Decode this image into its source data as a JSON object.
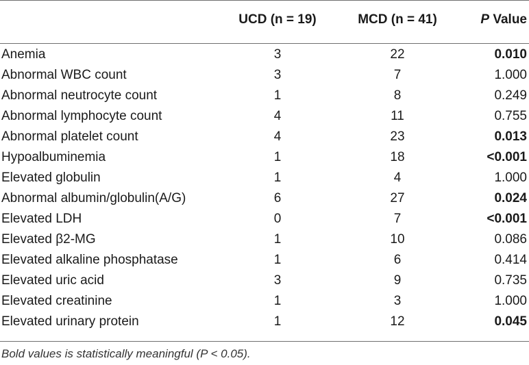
{
  "table": {
    "headers": {
      "label": "",
      "ucd": "UCD (n = 19)",
      "mcd": "MCD (n = 41)",
      "p_italic": "P",
      "p_rest": " Value"
    },
    "rows": [
      {
        "label": "Anemia",
        "ucd": "3",
        "mcd": "22",
        "p": "0.010",
        "bold": true
      },
      {
        "label": "Abnormal WBC count",
        "ucd": "3",
        "mcd": "7",
        "p": "1.000",
        "bold": false
      },
      {
        "label": "Abnormal neutrocyte count",
        "ucd": "1",
        "mcd": "8",
        "p": "0.249",
        "bold": false
      },
      {
        "label": "Abnormal lymphocyte count",
        "ucd": "4",
        "mcd": "11",
        "p": "0.755",
        "bold": false
      },
      {
        "label": "Abnormal platelet count",
        "ucd": "4",
        "mcd": "23",
        "p": "0.013",
        "bold": true
      },
      {
        "label": "Hypoalbuminemia",
        "ucd": "1",
        "mcd": "18",
        "p": "<0.001",
        "bold": true
      },
      {
        "label": "Elevated globulin",
        "ucd": "1",
        "mcd": "4",
        "p": "1.000",
        "bold": false
      },
      {
        "label": "Abnormal albumin/globulin(A/G)",
        "ucd": "6",
        "mcd": "27",
        "p": "0.024",
        "bold": true
      },
      {
        "label": "Elevated LDH",
        "ucd": "0",
        "mcd": "7",
        "p": "<0.001",
        "bold": true
      },
      {
        "label": "Elevated β2-MG",
        "ucd": "1",
        "mcd": "10",
        "p": "0.086",
        "bold": false
      },
      {
        "label": "Elevated alkaline phosphatase",
        "ucd": "1",
        "mcd": "6",
        "p": "0.414",
        "bold": false
      },
      {
        "label": "Elevated uric acid",
        "ucd": "3",
        "mcd": "9",
        "p": "0.735",
        "bold": false
      },
      {
        "label": "Elevated creatinine",
        "ucd": "1",
        "mcd": "3",
        "p": "1.000",
        "bold": false
      },
      {
        "label": "Elevated urinary protein",
        "ucd": "1",
        "mcd": "12",
        "p": "0.045",
        "bold": true
      }
    ]
  },
  "footnote": "Bold values is statistically meaningful (P < 0.05)."
}
